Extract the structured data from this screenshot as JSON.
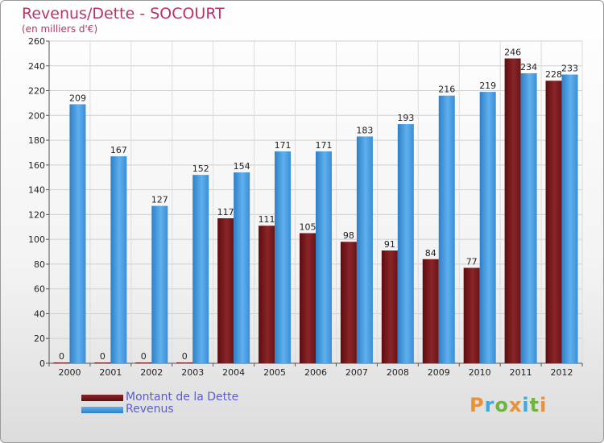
{
  "header": {
    "title": "Revenus/Dette - SOCOURT",
    "subtitle": "(en milliers d'€)"
  },
  "brand": {
    "text": "Proxiti",
    "letters": [
      "P",
      "r",
      "o",
      "x",
      "i",
      "t",
      "i"
    ],
    "letter_colors": [
      "#e8903a",
      "#3fa9dc",
      "#6fb43f",
      "#e8903a",
      "#3fa9dc",
      "#6fb43f",
      "#e8903a"
    ]
  },
  "chart_data": {
    "type": "bar",
    "title": "Revenus/Dette - SOCOURT",
    "ylabel": "(en milliers d'€)",
    "ylim": [
      0,
      260
    ],
    "yticks": [
      0,
      20,
      40,
      60,
      80,
      100,
      120,
      140,
      160,
      180,
      200,
      220,
      240,
      260
    ],
    "grid": true,
    "legend_position": "bottom-left",
    "categories": [
      "2000",
      "2001",
      "2002",
      "2003",
      "2004",
      "2005",
      "2006",
      "2007",
      "2008",
      "2009",
      "2010",
      "2011",
      "2012"
    ],
    "series": [
      {
        "name": "Montant de la Dette",
        "color": "#7a1a1e",
        "values": [
          0,
          0,
          0,
          0,
          117,
          111,
          105,
          98,
          91,
          84,
          77,
          246,
          228
        ]
      },
      {
        "name": "Revenus",
        "color": "#3b93d8",
        "values": [
          209,
          167,
          127,
          152,
          154,
          171,
          171,
          183,
          193,
          216,
          219,
          234,
          233
        ]
      }
    ]
  }
}
